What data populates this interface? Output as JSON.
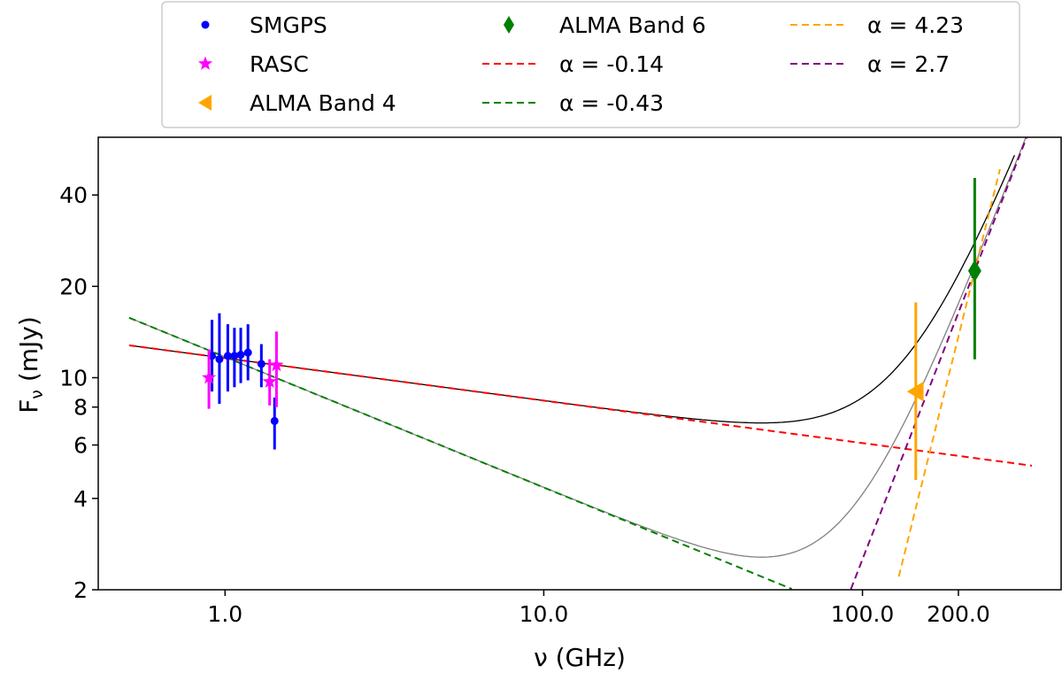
{
  "chart_data": {
    "type": "scatter",
    "xlabel": "ν (GHz)",
    "ylabel": "F_ν (mJy)",
    "ylabel_main": "F",
    "ylabel_sub": "ν",
    "ylabel_unit": " (mJy)",
    "xscale": "log",
    "yscale": "log",
    "xlim": [
      0.4,
      420
    ],
    "ylim": [
      2,
      62
    ],
    "x_ticks": [
      {
        "value": 1,
        "label": "1.0"
      },
      {
        "value": 10,
        "label": "10.0"
      },
      {
        "value": 100,
        "label": "100.0"
      },
      {
        "value": 200,
        "label": "200.0"
      }
    ],
    "y_ticks": [
      {
        "value": 2,
        "label": "2"
      },
      {
        "value": 4,
        "label": "4"
      },
      {
        "value": 6,
        "label": "6"
      },
      {
        "value": 8,
        "label": "8"
      },
      {
        "value": 10,
        "label": "10"
      },
      {
        "value": 20,
        "label": "20"
      },
      {
        "value": 40,
        "label": "40"
      }
    ],
    "grid": false,
    "legend_placement": "top-center",
    "series": [
      {
        "name": "SMGPS",
        "kind": "points",
        "marker": "circle",
        "color": "#0000ff",
        "points": [
          {
            "x": 0.91,
            "y": 11.8,
            "lo": 9.0,
            "hi": 15.5
          },
          {
            "x": 0.96,
            "y": 11.5,
            "lo": 8.2,
            "hi": 16.3
          },
          {
            "x": 1.02,
            "y": 11.8,
            "lo": 9.0,
            "hi": 15.0
          },
          {
            "x": 1.07,
            "y": 11.8,
            "lo": 9.3,
            "hi": 14.6
          },
          {
            "x": 1.12,
            "y": 11.9,
            "lo": 9.6,
            "hi": 14.6
          },
          {
            "x": 1.18,
            "y": 12.1,
            "lo": 9.8,
            "hi": 15.0
          },
          {
            "x": 1.3,
            "y": 11.1,
            "lo": 9.3,
            "hi": 12.9
          },
          {
            "x": 1.43,
            "y": 7.2,
            "lo": 5.8,
            "hi": 8.6
          }
        ]
      },
      {
        "name": "RASC",
        "kind": "points",
        "marker": "star",
        "color": "#ff00ff",
        "points": [
          {
            "x": 0.89,
            "y": 10.0,
            "lo": 7.9,
            "hi": 12.4
          },
          {
            "x": 1.38,
            "y": 9.7,
            "lo": 8.1,
            "hi": 11.5
          },
          {
            "x": 1.45,
            "y": 11.0,
            "lo": 8.0,
            "hi": 14.2
          }
        ]
      },
      {
        "name": "ALMA Band 4",
        "kind": "points",
        "marker": "triangle-left",
        "color": "#ffa500",
        "points": [
          {
            "x": 147,
            "y": 9.0,
            "lo": 4.6,
            "hi": 17.7
          }
        ]
      },
      {
        "name": "ALMA Band 6",
        "kind": "points",
        "marker": "diamond",
        "color": "#008000",
        "points": [
          {
            "x": 225,
            "y": 22.5,
            "lo": 11.5,
            "hi": 45.5
          }
        ]
      },
      {
        "name": "α = -0.14",
        "kind": "dashed-line",
        "color": "#ff0000",
        "alpha": -0.14,
        "x0": 1.0,
        "y0": 11.6,
        "xrange": [
          0.5,
          340
        ]
      },
      {
        "name": "α = -0.43",
        "kind": "dashed-line",
        "color": "#008000",
        "alpha": -0.43,
        "x0": 1.0,
        "y0": 11.7,
        "xrange": [
          0.5,
          60
        ]
      },
      {
        "name": "α = 4.23",
        "kind": "dashed-line",
        "color": "#ffa500",
        "alpha": 4.23,
        "x0": 225,
        "y0": 22.5,
        "xrange": [
          130,
          270
        ]
      },
      {
        "name": "α = 2.7",
        "kind": "dashed-line",
        "color": "#800080",
        "alpha": 2.7,
        "x0": 225,
        "y0": 22.5,
        "xrange": [
          84,
          340
        ]
      }
    ],
    "fit_curves": [
      {
        "components": [
          "α = -0.14",
          "α = 2.7"
        ],
        "color": "#000000",
        "xrange": [
          0.5,
          300
        ]
      },
      {
        "components": [
          "α = -0.43",
          "α = 2.7"
        ],
        "color": "#808080",
        "xrange": [
          0.5,
          340
        ]
      }
    ]
  }
}
